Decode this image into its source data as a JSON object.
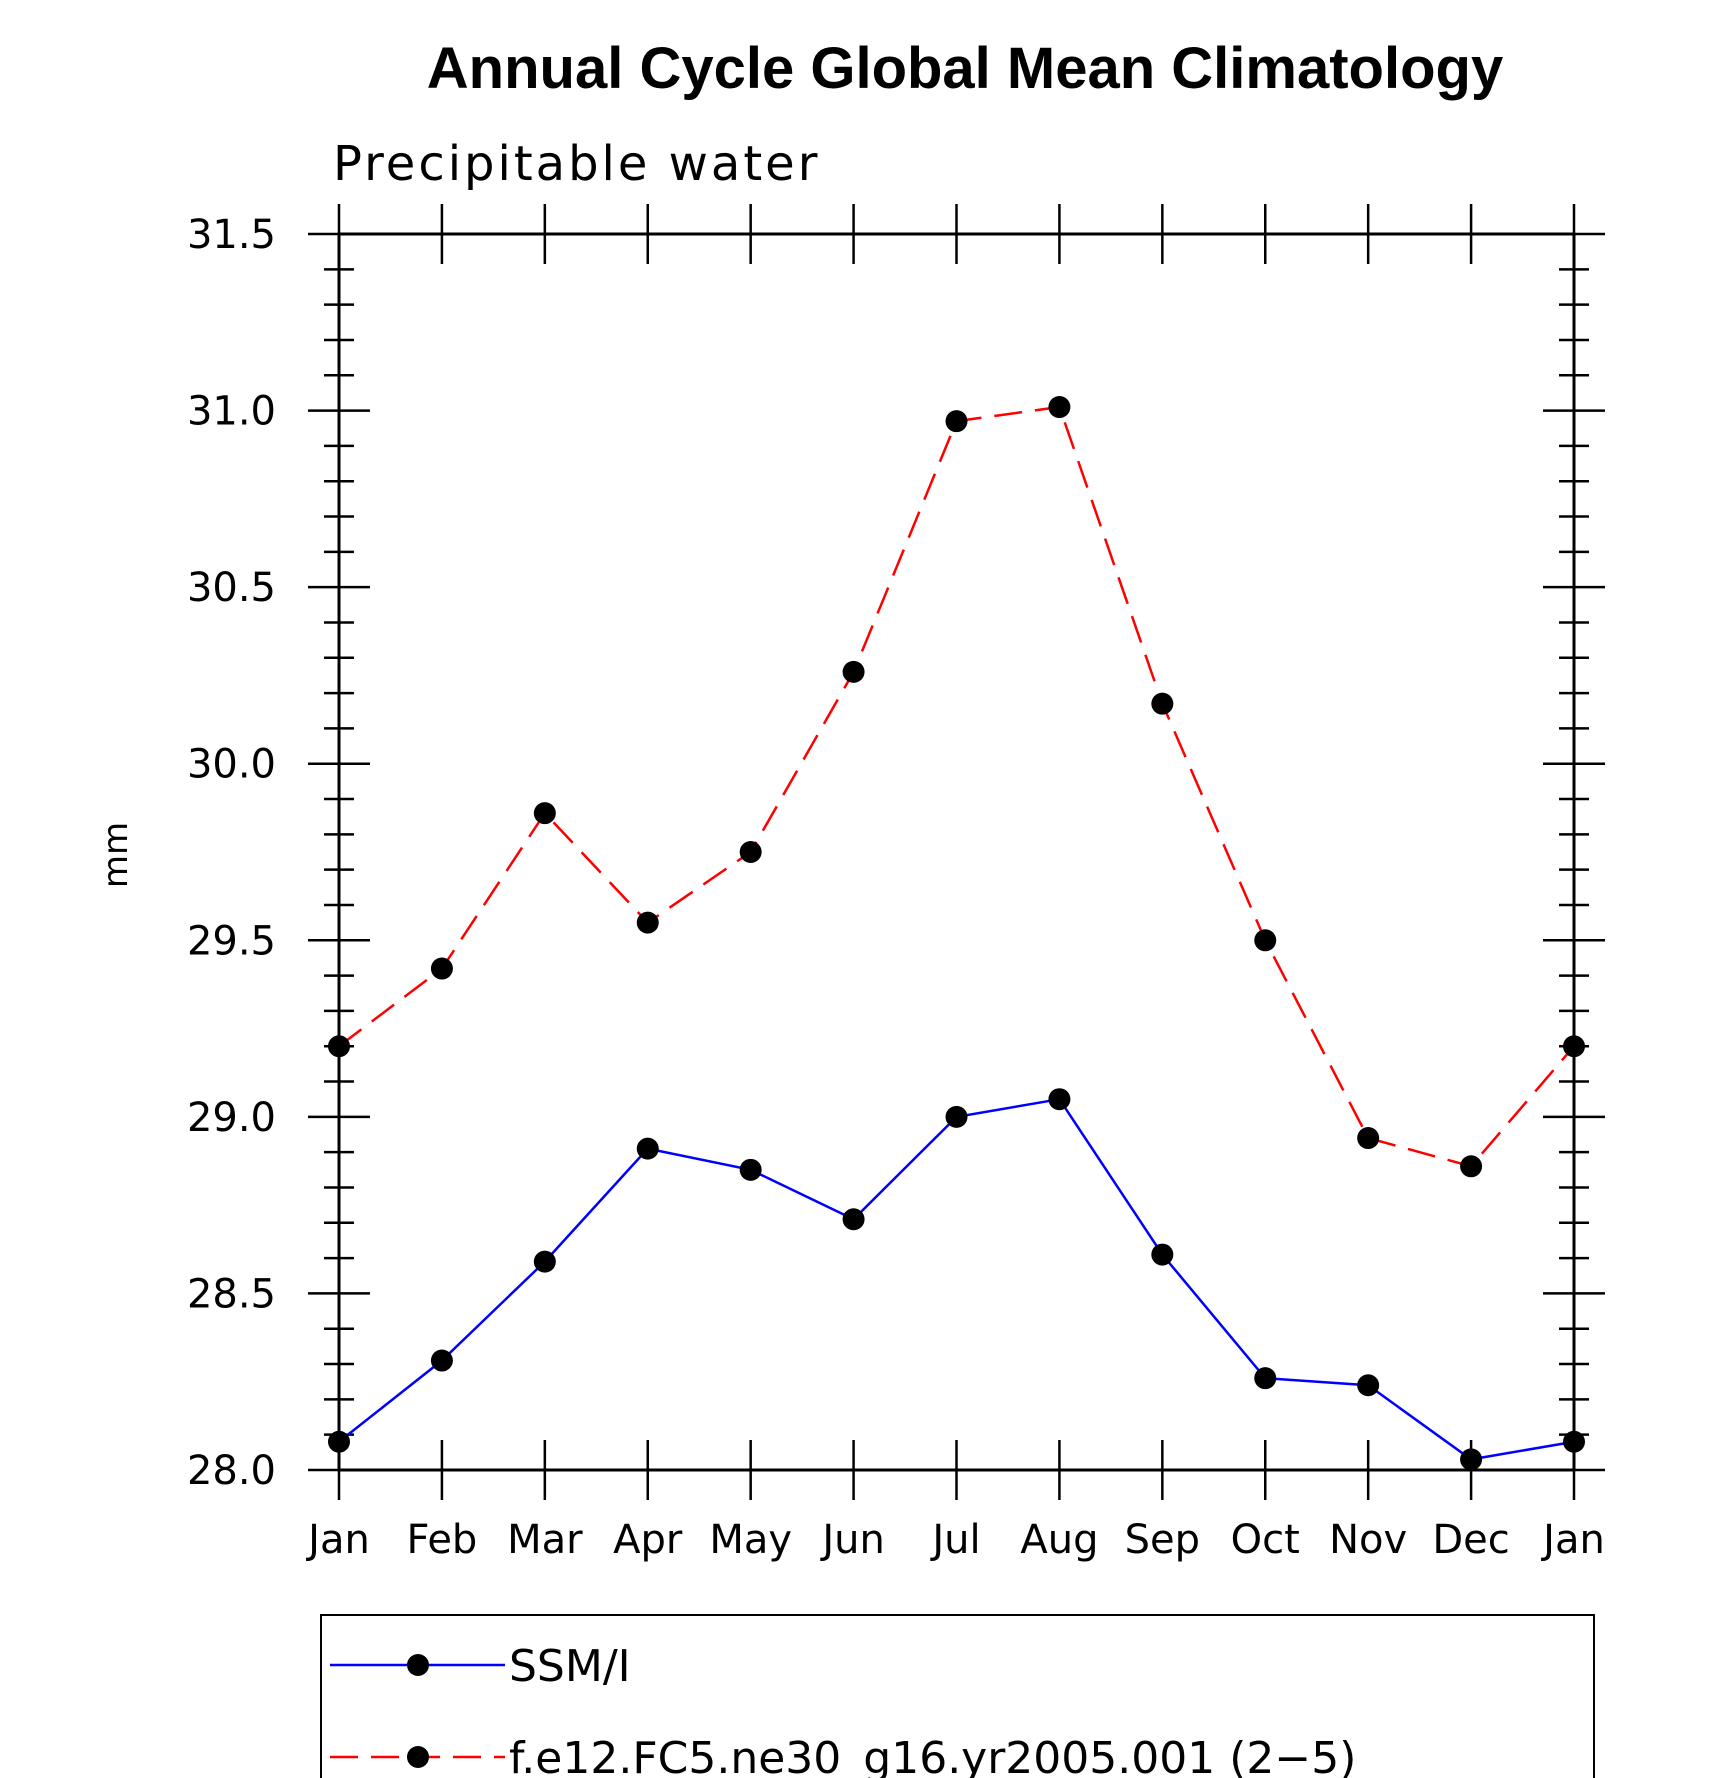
{
  "chart_data": {
    "type": "line",
    "title": "Annual Cycle Global Mean Climatology",
    "subtitle": "Precipitable water",
    "xlabel": "",
    "ylabel": "mm",
    "categories": [
      "Jan",
      "Feb",
      "Mar",
      "Apr",
      "May",
      "Jun",
      "Jul",
      "Aug",
      "Sep",
      "Oct",
      "Nov",
      "Dec",
      "Jan"
    ],
    "ylim": [
      28.0,
      31.5
    ],
    "y_ticks": [
      "28.0",
      "28.5",
      "29.0",
      "29.5",
      "30.0",
      "30.5",
      "31.0",
      "31.5"
    ],
    "grid": false,
    "legend_position": "bottom",
    "series": [
      {
        "name": "SSM/I",
        "color": "#0000ff",
        "line_style": "solid",
        "marker": "filled-circle",
        "values": [
          28.08,
          28.31,
          28.59,
          28.91,
          28.85,
          28.71,
          29.0,
          29.05,
          28.61,
          28.26,
          28.24,
          28.03,
          28.08
        ]
      },
      {
        "name": "f.e12.FC5.ne30_g16.yr2005.001 (2−5)",
        "color": "#ff0000",
        "line_style": "dashed",
        "marker": "filled-circle",
        "values": [
          29.2,
          29.42,
          29.86,
          29.55,
          29.75,
          30.26,
          30.97,
          31.01,
          30.17,
          29.5,
          28.94,
          28.86,
          29.2
        ]
      }
    ]
  }
}
